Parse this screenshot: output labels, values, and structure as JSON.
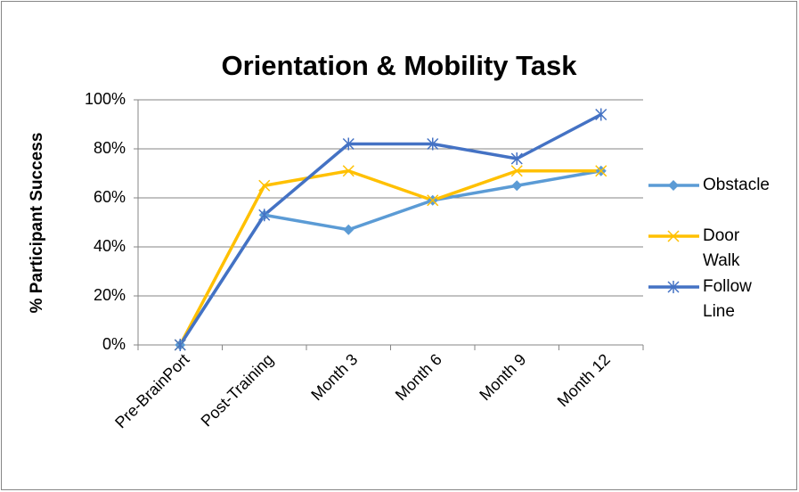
{
  "chart_data": {
    "type": "line",
    "title": "Orientation & Mobility Task",
    "y_label": "% Participant Success",
    "categories": [
      "Pre-BrainPort",
      "Post-Training",
      "Month 3",
      "Month 6",
      "Month 9",
      "Month 12"
    ],
    "series": [
      {
        "name": "Obstacle",
        "color": "#5b9bd5",
        "marker": "diamond",
        "values": [
          0,
          53,
          47,
          59,
          65,
          71
        ]
      },
      {
        "name": "Door Walk",
        "color": "#ffc000",
        "marker": "x",
        "values": [
          0,
          65,
          71,
          59,
          71,
          71
        ]
      },
      {
        "name": "Follow Line",
        "color": "#4472c4",
        "marker": "asterisk",
        "values": [
          0,
          53,
          82,
          82,
          76,
          94
        ]
      }
    ],
    "ylim": [
      0,
      100
    ],
    "yticks": [
      {
        "value": 0,
        "label": "0%"
      },
      {
        "value": 20,
        "label": "20%"
      },
      {
        "value": 40,
        "label": "40%"
      },
      {
        "value": 60,
        "label": "60%"
      },
      {
        "value": 80,
        "label": "80%"
      },
      {
        "value": 100,
        "label": "100%"
      }
    ],
    "grid": true,
    "legend": "right"
  }
}
